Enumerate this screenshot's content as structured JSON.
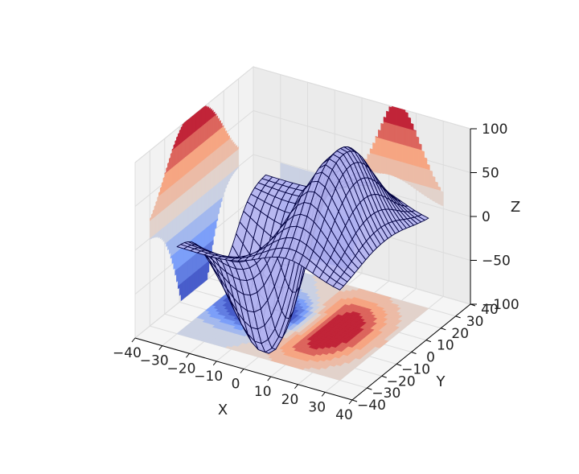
{
  "chart_data": {
    "type": "surface3d",
    "title": "",
    "surface": {
      "style": "wireframe",
      "function": "3 * (bivariate_normal(X,Y,σ=(10,15),μ=(10,0)) - bivariate_normal(X,Y,σ=(15,10),μ=(-10,0))) scaled to ±100 peak",
      "x_range": [
        -30,
        30
      ],
      "y_range": [
        -30,
        30
      ],
      "peak": {
        "x": 10,
        "y": 0,
        "z": 96
      },
      "trough": {
        "x": -10,
        "y": 0,
        "z": -73
      },
      "face_color": "#b3b3f0",
      "edge_color": "#000040"
    },
    "projections": [
      {
        "name": "z-contour",
        "offset_axis": "z",
        "offset": -100
      },
      {
        "name": "x-contour",
        "offset_axis": "x",
        "offset": -40
      },
      {
        "name": "y-contour",
        "offset_axis": "y",
        "offset": 40
      }
    ],
    "colormap": "coolwarm",
    "axes": {
      "x": {
        "label": "X",
        "ticks": [
          "−40",
          "−30",
          "−20",
          "−10",
          "0",
          "10",
          "20",
          "30",
          "40"
        ],
        "lim": [
          -40,
          40
        ]
      },
      "y": {
        "label": "Y",
        "ticks": [
          "−40",
          "−30",
          "−20",
          "−10",
          "0",
          "10",
          "20",
          "30",
          "40"
        ],
        "lim": [
          -40,
          40
        ]
      },
      "z": {
        "label": "Z",
        "ticks": [
          "−100",
          "−50",
          "0",
          "50",
          "100"
        ],
        "lim": [
          -100,
          100
        ]
      }
    },
    "grid": true
  }
}
